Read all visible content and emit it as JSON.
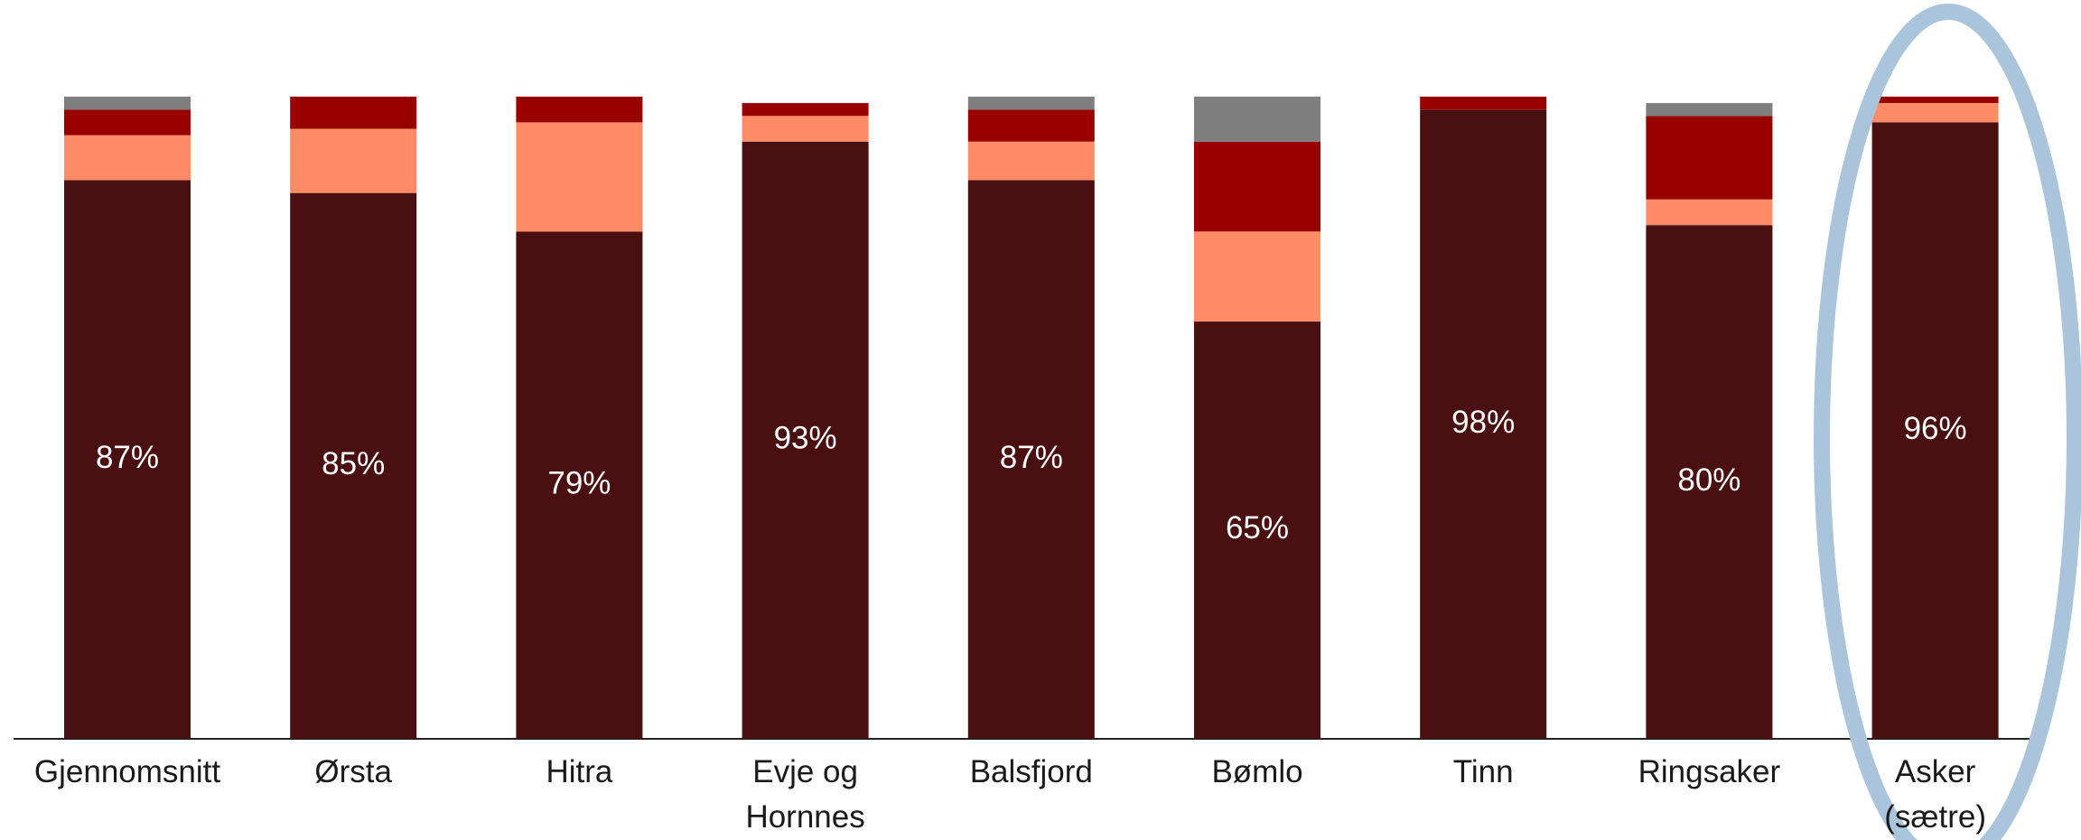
{
  "chart_data": {
    "type": "stacked_bar",
    "categories": [
      "Gjennomsnitt",
      "Ørsta",
      "Hitra",
      "Evje og\nHornnes",
      "Balsfjord",
      "Bømlo",
      "Tinn",
      "Ringsaker",
      "Asker\n(sætre)"
    ],
    "series": [
      {
        "color": "#4a0f10",
        "values": [
          87,
          85,
          79,
          93,
          87,
          65,
          98,
          80,
          96
        ],
        "value_labels": [
          "87%",
          "85%",
          "79%",
          "93%",
          "87%",
          "65%",
          "98%",
          "80%",
          "96%"
        ]
      },
      {
        "color": "#ff8c66",
        "values": [
          7,
          10,
          17,
          4,
          6,
          14,
          0,
          4,
          3
        ]
      },
      {
        "color": "#990000",
        "values": [
          4,
          5,
          4,
          2,
          5,
          14,
          2,
          13,
          1
        ]
      },
      {
        "color": "#7f7f7f",
        "values": [
          2,
          0,
          0,
          0,
          2,
          7,
          0,
          2,
          0
        ]
      }
    ],
    "ylim": [
      0,
      100
    ]
  }
}
